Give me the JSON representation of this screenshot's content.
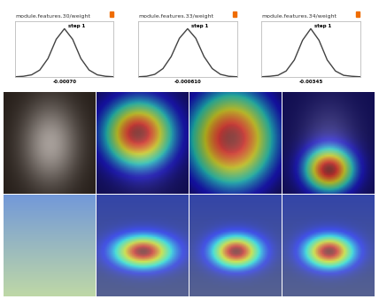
{
  "chart_data": [
    {
      "type": "line",
      "title": "module.features.30/weight",
      "x": [
        -0.03,
        -0.025,
        -0.02,
        -0.015,
        -0.01,
        -0.005,
        0,
        0.005,
        0.01,
        0.015,
        0.02,
        0.025,
        0.03
      ],
      "values": [
        0,
        0.01,
        0.04,
        0.14,
        0.38,
        0.78,
        1.0,
        0.78,
        0.38,
        0.14,
        0.04,
        0.01,
        0
      ],
      "xlim": [
        -0.03,
        0.03
      ],
      "ylim": [
        0,
        1.15
      ],
      "tick_labels": false,
      "color": "#424242",
      "annotations": [
        "step 1",
        "-0.00070"
      ]
    },
    {
      "type": "line",
      "title": "module.features.33/weight",
      "x": [
        -0.03,
        -0.025,
        -0.02,
        -0.015,
        -0.01,
        -0.005,
        0,
        0.005,
        0.01,
        0.015,
        0.02,
        0.025,
        0.03
      ],
      "values": [
        0,
        0.01,
        0.05,
        0.17,
        0.42,
        0.8,
        1.0,
        0.8,
        0.42,
        0.17,
        0.05,
        0.01,
        0
      ],
      "xlim": [
        -0.03,
        0.03
      ],
      "ylim": [
        0,
        1.15
      ],
      "tick_labels": false,
      "color": "#424242",
      "annotations": [
        "step 1",
        "-0.000610"
      ]
    },
    {
      "type": "line",
      "title": "module.features.34/weight",
      "x": [
        -0.03,
        -0.025,
        -0.02,
        -0.015,
        -0.01,
        -0.005,
        0,
        0.005,
        0.01,
        0.015,
        0.02,
        0.025,
        0.03
      ],
      "values": [
        0,
        0.01,
        0.03,
        0.12,
        0.35,
        0.76,
        1.0,
        0.76,
        0.35,
        0.12,
        0.03,
        0.01,
        0
      ],
      "xlim": [
        -0.03,
        0.03
      ],
      "ylim": [
        0,
        1.15
      ],
      "tick_labels": false,
      "color": "#424242",
      "annotations": [
        "step 1",
        "-0.00345"
      ]
    }
  ]
}
